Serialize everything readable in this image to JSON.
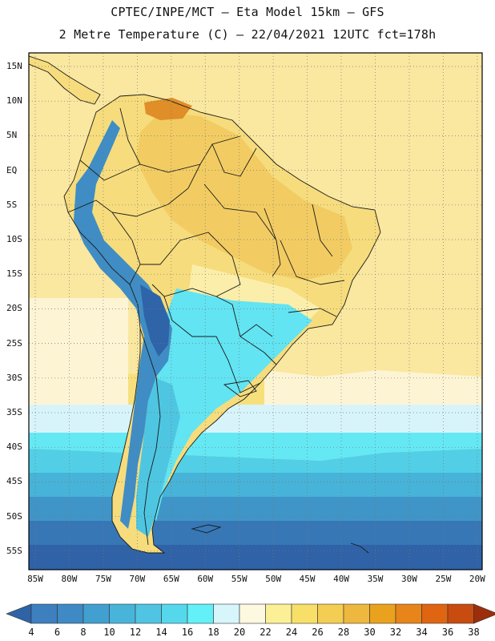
{
  "title": {
    "line1": "CPTEC/INPE/MCT –  Eta Model 15km – GFS",
    "line2": "2 Metre Temperature (C) – 22/04/2021 12UTC fct=178h"
  },
  "axes": {
    "lat_labels": [
      "15N",
      "10N",
      "5N",
      "EQ",
      "5S",
      "10S",
      "15S",
      "20S",
      "25S",
      "30S",
      "35S",
      "40S",
      "45S",
      "50S",
      "55S"
    ],
    "lon_labels": [
      "85W",
      "80W",
      "75W",
      "70W",
      "65W",
      "60W",
      "55W",
      "50W",
      "45W",
      "40W",
      "35W",
      "30W",
      "25W",
      "20W"
    ]
  },
  "colorbar": {
    "labels": [
      "4",
      "6",
      "8",
      "10",
      "12",
      "14",
      "16",
      "18",
      "20",
      "22",
      "24",
      "26",
      "28",
      "30",
      "32",
      "34",
      "36",
      "38"
    ],
    "colors": [
      "#3e7fbf",
      "#3f8ac4",
      "#41a0cf",
      "#49b4da",
      "#50c4e3",
      "#55d8ec",
      "#64f0f8",
      "#d6f6fc",
      "#fdf8e0",
      "#fbf096",
      "#f8df68",
      "#f4ce52",
      "#eeb83e",
      "#eaa21e",
      "#e7851a",
      "#e06512",
      "#c84c10",
      "#b53a0e",
      "#9c2e0c"
    ],
    "low_color": "#2f63a8",
    "high_color": "#9c2e0c"
  },
  "map_colors": {
    "ocean_north": "#f7e07c",
    "ocean_tropic": "#fae7a0",
    "ocean_band_20": "#fdf4d4",
    "ocean_band_18": "#d8f4fb",
    "ocean_band_16": "#64e8f4",
    "ocean_band_14": "#52cfe6",
    "ocean_band_12": "#47b3d8",
    "ocean_band_10": "#3f95c8",
    "ocean_band_8": "#3777b6",
    "ocean_band_6": "#2f62a7",
    "land_hot": "#f2cc62",
    "land_warm": "#f6dc7c",
    "land_mild": "#fbeeaa",
    "land_cool": "#62e4f2",
    "land_cold": "#4ec6e2",
    "andes": "#3f8dc4",
    "andes_peak": "#2f64a8",
    "hotspot": "#e08e28",
    "border": "#1a1a1a"
  }
}
